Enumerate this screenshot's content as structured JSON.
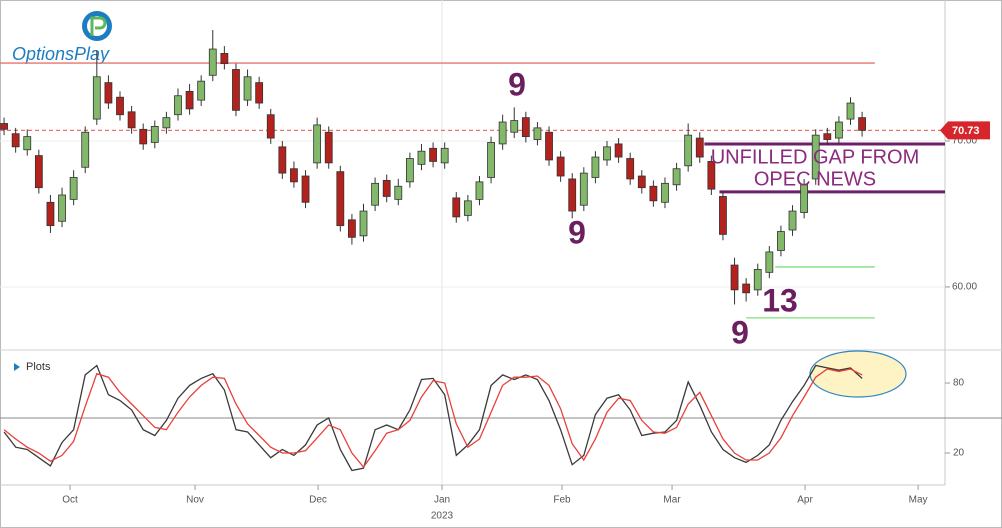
{
  "brand": "OptionsPlay",
  "chart_data": [
    {
      "type": "candlestick",
      "ylim": [
        55.68,
        79.66
      ],
      "yticks": [
        {
          "value": 60,
          "label": "60.00"
        },
        {
          "value": 70,
          "label": "70.00"
        }
      ],
      "grid": true,
      "xlim": [
        -0.35,
        81.15
      ],
      "up_color": "#82b86a",
      "down_color": "#b3221c",
      "open": [
        71.2,
        70.5,
        69.4,
        69.0,
        65.8,
        64.5,
        66.0,
        68.2,
        71.5,
        74.0,
        73.0,
        72.0,
        70.8,
        69.9,
        70.9,
        71.8,
        73.4,
        72.8,
        74.5,
        76.0,
        74.9,
        72.8,
        74.0,
        71.8,
        69.6,
        68.1,
        67.6,
        68.5,
        70.6,
        67.9,
        64.6,
        63.5,
        65.6,
        67.3,
        66.0,
        67.2,
        68.4,
        69.5,
        68.5,
        66.1,
        64.9,
        66.0,
        67.5,
        69.8,
        70.6,
        71.6,
        70.1,
        70.6,
        68.9,
        67.4,
        65.6,
        67.5,
        68.7,
        69.8,
        68.8,
        67.6,
        66.9,
        65.8,
        67.0,
        68.3,
        70.2,
        68.6,
        66.2,
        61.5,
        60.2,
        59.8,
        61.0,
        62.5,
        63.9,
        65.1,
        67.4,
        70.5,
        70.2,
        71.5,
        71.6
      ],
      "high": [
        71.6,
        70.9,
        70.8,
        69.4,
        66.3,
        66.8,
        68.0,
        71.0,
        76.2,
        74.5,
        73.4,
        72.4,
        71.2,
        71.4,
        72.0,
        73.6,
        73.9,
        74.5,
        77.6,
        76.5,
        75.3,
        74.9,
        74.4,
        72.2,
        70.0,
        68.6,
        68.0,
        71.6,
        71.0,
        68.3,
        65.0,
        65.7,
        67.5,
        67.7,
        67.4,
        69.2,
        69.8,
        69.9,
        69.9,
        66.5,
        66.3,
        67.6,
        70.3,
        71.8,
        72.3,
        72.0,
        71.3,
        71.0,
        69.3,
        67.8,
        68.2,
        69.3,
        70.0,
        70.2,
        69.2,
        68.0,
        67.3,
        67.5,
        68.5,
        71.2,
        70.6,
        69.0,
        66.6,
        62.0,
        60.6,
        61.6,
        62.8,
        64.2,
        65.6,
        67.4,
        70.8,
        70.9,
        71.7,
        73.0,
        72.0
      ],
      "low": [
        70.4,
        69.2,
        69.0,
        66.4,
        63.7,
        64.1,
        65.6,
        67.8,
        71.1,
        72.2,
        71.4,
        70.5,
        69.4,
        69.5,
        70.5,
        71.4,
        71.8,
        72.4,
        74.1,
        74.9,
        71.7,
        72.4,
        72.2,
        69.8,
        67.4,
        66.8,
        65.4,
        68.1,
        68.1,
        63.8,
        62.9,
        63.1,
        65.2,
        65.8,
        65.6,
        66.8,
        68.0,
        68.2,
        68.1,
        64.4,
        64.5,
        65.6,
        67.1,
        69.4,
        70.2,
        69.9,
        69.7,
        68.3,
        67.2,
        64.7,
        65.2,
        67.1,
        68.3,
        68.5,
        67.0,
        66.4,
        65.5,
        65.4,
        66.6,
        67.9,
        68.5,
        66.3,
        63.2,
        58.8,
        59.0,
        59.4,
        60.6,
        62.1,
        63.5,
        64.7,
        67.0,
        69.7,
        69.8,
        71.1,
        70.3
      ],
      "close": [
        70.8,
        69.6,
        70.3,
        66.8,
        64.2,
        66.3,
        67.5,
        70.6,
        74.4,
        72.6,
        71.8,
        70.9,
        69.8,
        71.0,
        71.6,
        73.1,
        72.2,
        74.1,
        76.3,
        75.3,
        72.1,
        74.4,
        72.6,
        70.2,
        67.8,
        67.2,
        65.8,
        71.1,
        68.5,
        64.2,
        63.4,
        65.2,
        67.1,
        66.2,
        66.9,
        68.8,
        69.3,
        68.6,
        69.5,
        64.8,
        65.9,
        67.2,
        69.9,
        71.3,
        71.4,
        70.3,
        70.9,
        68.7,
        67.6,
        65.2,
        67.8,
        68.9,
        69.6,
        68.9,
        67.4,
        66.8,
        65.9,
        67.1,
        68.1,
        70.4,
        68.9,
        66.7,
        63.6,
        59.8,
        59.6,
        61.2,
        62.4,
        63.8,
        65.2,
        67.0,
        70.4,
        70.1,
        71.3,
        72.6,
        70.73
      ],
      "last": 70.73,
      "last_color": "#d6262b",
      "levels": [
        {
          "value": 75.34,
          "color": "#e8736e",
          "from": -0.35,
          "to": 75.1
        },
        {
          "value": 70.73,
          "color": "#e8736e",
          "from": -0.35,
          "to": 81.15,
          "dashed": true
        },
        {
          "value": 69.79,
          "color": "#6d1f6a",
          "from": 60.4,
          "to": 81.15,
          "width": 3
        },
        {
          "value": 66.51,
          "color": "#6d1f6a",
          "from": 61.7,
          "to": 81.15,
          "width": 3
        },
        {
          "value": 61.37,
          "color": "#7fe07a",
          "from": 66.5,
          "to": 75.1
        },
        {
          "value": 57.88,
          "color": "#7fe07a",
          "from": 64.0,
          "to": 75.1
        }
      ],
      "annotations": [
        "9",
        "9",
        "9",
        "13",
        "UNFILLED GAP FROM",
        "OPEC NEWS"
      ]
    },
    {
      "type": "line",
      "label": "Plots",
      "ylim": [
        -7.4,
        106.6
      ],
      "yticks": [
        20,
        80
      ],
      "reference": 50,
      "xlim": [
        -0.35,
        81.15
      ],
      "xticks": [
        {
          "value": 5.69,
          "label": "Oct"
        },
        {
          "value": 16.47,
          "label": "Nov"
        },
        {
          "value": 27.08,
          "label": "Dec"
        },
        {
          "value": 37.77,
          "label": "Jan"
        },
        {
          "value": 48.12,
          "label": "Feb"
        },
        {
          "value": 57.61,
          "label": "Mar"
        },
        {
          "value": 69.08,
          "label": "Apr"
        },
        {
          "value": 78.83,
          "label": "May"
        }
      ],
      "year_label": "2023",
      "series": [
        {
          "color": "#3a3a3a",
          "values": [
            38,
            25,
            23,
            16,
            9,
            29,
            40,
            87,
            95,
            70,
            65,
            57,
            40,
            35,
            48,
            67,
            78,
            84,
            88,
            74,
            40,
            38,
            27,
            16,
            23,
            18,
            27,
            44,
            50,
            23,
            5,
            7,
            40,
            44,
            40,
            57,
            83,
            84,
            70,
            18,
            27,
            40,
            78,
            87,
            83,
            87,
            83,
            65,
            40,
            10,
            18,
            53,
            67,
            70,
            57,
            35,
            37,
            38,
            48,
            81,
            61,
            38,
            23,
            16,
            12,
            18,
            27,
            48,
            64,
            78,
            95,
            93,
            91,
            93,
            84
          ]
        },
        {
          "color": "#e8403a",
          "values": [
            40,
            32,
            25,
            20,
            13,
            18,
            30,
            60,
            88,
            85,
            72,
            62,
            52,
            42,
            40,
            55,
            68,
            78,
            85,
            84,
            62,
            45,
            35,
            25,
            20,
            20,
            22,
            33,
            44,
            40,
            20,
            8,
            22,
            37,
            40,
            48,
            68,
            82,
            80,
            45,
            25,
            32,
            55,
            78,
            85,
            85,
            86,
            78,
            58,
            28,
            14,
            32,
            55,
            67,
            65,
            48,
            38,
            37,
            42,
            62,
            72,
            52,
            32,
            20,
            14,
            14,
            20,
            33,
            52,
            68,
            85,
            92,
            90,
            92,
            87
          ]
        }
      ]
    }
  ]
}
